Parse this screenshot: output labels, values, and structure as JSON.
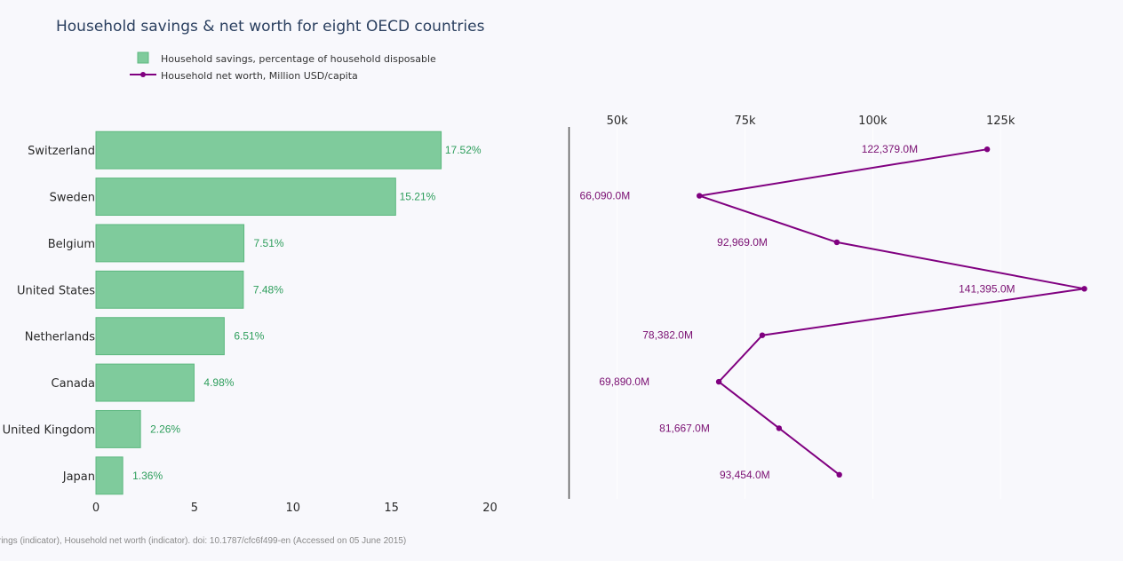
{
  "chart_data": {
    "title": "Household savings & net worth for eight OECD countries",
    "type": "bar+line",
    "categories": [
      "Switzerland",
      "Sweden",
      "Belgium",
      "United States",
      "Netherlands",
      "Canada",
      "United Kingdom",
      "Japan"
    ],
    "legend": {
      "position": "top-left",
      "entries": [
        "Household savings, percentage of household disposable",
        "Household net worth, Million USD/capita"
      ]
    },
    "left_panel": {
      "type": "bar",
      "orientation": "horizontal",
      "series_name": "Household savings, percentage of household disposable",
      "values": [
        17.52,
        15.21,
        7.51,
        7.48,
        6.51,
        4.98,
        2.26,
        1.36
      ],
      "data_labels": [
        "17.52%",
        "15.21%",
        "7.51%",
        "7.48%",
        "6.51%",
        "4.98%",
        "2.26%",
        "1.36%"
      ],
      "xlim": [
        0,
        22.5
      ],
      "x_ticks": [
        0,
        5,
        10,
        15,
        20
      ],
      "x_tick_labels": [
        "0",
        "5",
        "10",
        "15",
        "20"
      ],
      "grid": false,
      "color": "#7fcb9c"
    },
    "right_panel": {
      "type": "line",
      "series_name": "Household net worth, Million USD/capita",
      "values": [
        122379.0,
        66090.0,
        92969.0,
        141395.0,
        78382.0,
        69890.0,
        81667.0,
        93454.0
      ],
      "data_labels": [
        "122,379.0M",
        "66,090.0M",
        "92,969.0M",
        "141,395.0M",
        "78,382.0M",
        "69,890.0M",
        "81,667.0M",
        "93,454.0M"
      ],
      "xlim": [
        40500,
        142000
      ],
      "x_ticks": [
        50000,
        75000,
        100000,
        125000
      ],
      "x_tick_labels": [
        "50k",
        "75k",
        "100k",
        "125k"
      ],
      "x_axis_side": "top",
      "grid": true,
      "color": "#800080"
    },
    "source": "rings (indicator), Household net worth (indicator). doi: 10.1787/cfc6f499-en (Accessed on 05 June 2015)"
  }
}
